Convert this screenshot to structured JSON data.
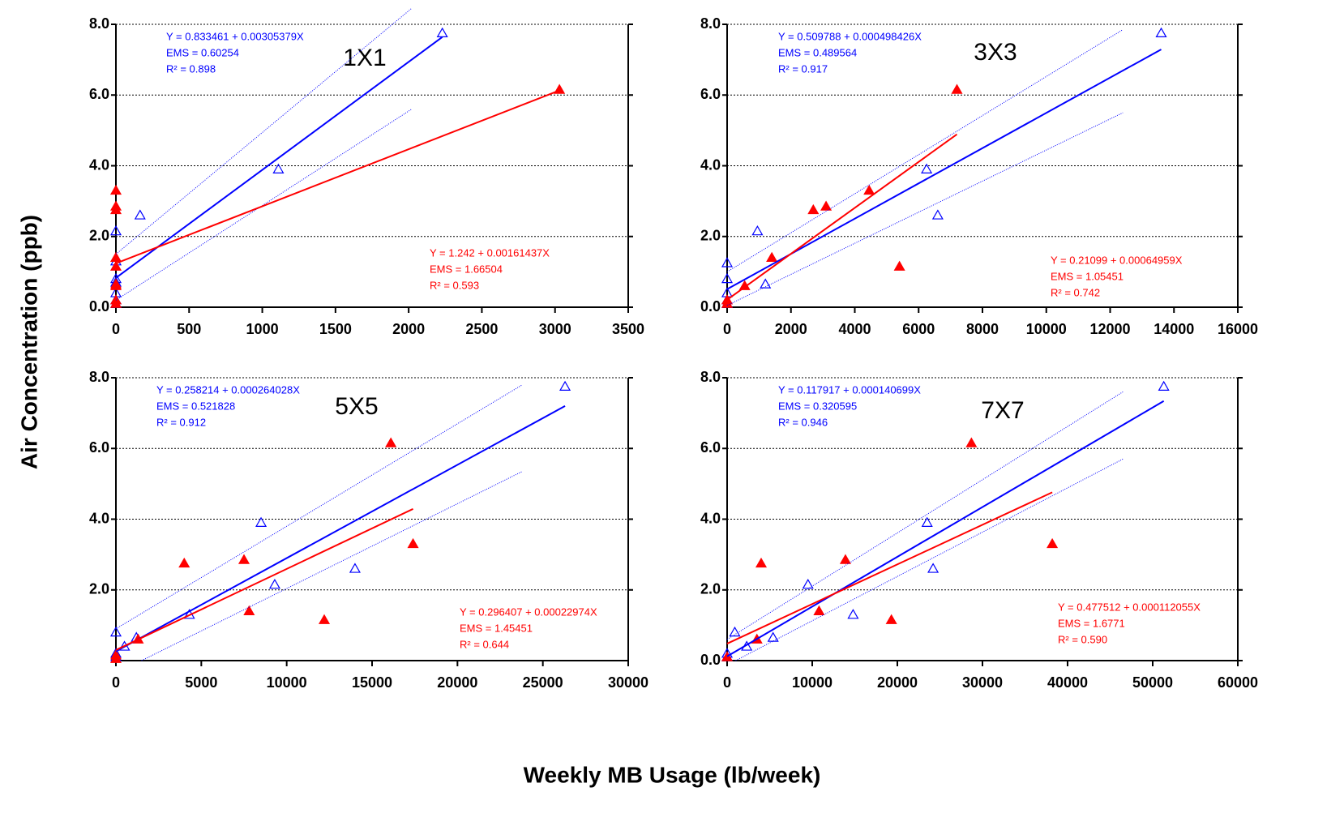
{
  "ylabel": "Air Concentration (ppb)",
  "xlabel": "Weekly MB Usage (lb/week)",
  "chart_data": [
    {
      "type": "scatter",
      "title": "1X1",
      "xlim": [
        0,
        3500
      ],
      "xticks": [
        0,
        500,
        1000,
        1500,
        2000,
        2500,
        3000,
        3500
      ],
      "ylim": [
        0,
        8
      ],
      "yticks": [
        {
          "value": 0,
          "label": "0.0"
        },
        {
          "value": 2,
          "label": "2.0"
        },
        {
          "value": 4,
          "label": "4.0"
        },
        {
          "value": 6,
          "label": "6.0"
        },
        {
          "value": 8,
          "label": "8.0"
        }
      ],
      "grid": true,
      "annotations": [
        {
          "color": "#0000ff",
          "lines": [
            "Y = 0.833461 + 0.00305379X",
            "EMS = 0.60254",
            "R² = 0.898"
          ]
        },
        {
          "color": "#ff0000",
          "lines": [
            "Y = 1.242 + 0.00161437X",
            "EMS = 1.66504",
            "R² = 0.593"
          ]
        }
      ],
      "series": [
        {
          "kind": "markers",
          "marker": "open-triangle",
          "color": "#0000ff",
          "x": [
            0,
            0,
            0,
            0,
            0,
            0,
            0,
            165,
            1110,
            2230
          ],
          "values": [
            0.1,
            0.2,
            0.4,
            0.7,
            0.8,
            1.3,
            2.15,
            2.6,
            3.9,
            7.75
          ]
        },
        {
          "kind": "markers",
          "marker": "filled-triangle",
          "color": "#ff0000",
          "x": [
            0,
            0,
            0,
            0,
            0,
            0,
            0,
            0,
            0,
            3030
          ],
          "values": [
            0.1,
            0.2,
            0.6,
            0.65,
            1.15,
            1.4,
            2.75,
            2.85,
            3.3,
            6.15
          ]
        },
        {
          "kind": "line",
          "style": "solid",
          "color": "#0000ff",
          "x": [
            0,
            2230
          ],
          "values": [
            0.83,
            7.64
          ]
        },
        {
          "kind": "line",
          "style": "dotted",
          "color": "#0000ff",
          "x": [
            0,
            2020
          ],
          "values": [
            1.5,
            8.45
          ]
        },
        {
          "kind": "line",
          "style": "dotted",
          "color": "#0000ff",
          "x": [
            0,
            2020
          ],
          "values": [
            0.2,
            5.6
          ]
        },
        {
          "kind": "line",
          "style": "solid",
          "color": "#ff0000",
          "x": [
            0,
            3030
          ],
          "values": [
            1.24,
            6.13
          ]
        }
      ]
    },
    {
      "type": "scatter",
      "title": "3X3",
      "xlim": [
        0,
        16000
      ],
      "xticks": [
        0,
        2000,
        4000,
        6000,
        8000,
        10000,
        12000,
        14000,
        16000
      ],
      "ylim": [
        0,
        8
      ],
      "yticks": [
        {
          "value": 0,
          "label": "0.0"
        },
        {
          "value": 2,
          "label": "2.0"
        },
        {
          "value": 4,
          "label": "4.0"
        },
        {
          "value": 6,
          "label": "6.0"
        },
        {
          "value": 8,
          "label": "8.0"
        }
      ],
      "grid": true,
      "annotations": [
        {
          "color": "#0000ff",
          "lines": [
            "Y = 0.509788 + 0.000498426X",
            "EMS = 0.489564",
            "R² = 0.917"
          ]
        },
        {
          "color": "#ff0000",
          "lines": [
            "Y = 0.21099 + 0.00064959X",
            "EMS = 1.05451",
            "R² = 0.742"
          ]
        }
      ],
      "series": [
        {
          "kind": "markers",
          "marker": "open-triangle",
          "color": "#0000ff",
          "x": [
            0,
            0,
            0,
            0,
            0,
            950,
            1200,
            6250,
            6600,
            13600
          ],
          "values": [
            0.1,
            0.2,
            0.4,
            0.8,
            1.25,
            2.15,
            0.65,
            3.9,
            2.6,
            7.75
          ]
        },
        {
          "kind": "markers",
          "marker": "filled-triangle",
          "color": "#ff0000",
          "x": [
            0,
            0,
            550,
            1400,
            2700,
            3100,
            4450,
            5400,
            7200
          ],
          "values": [
            0.1,
            0.2,
            0.6,
            1.4,
            2.75,
            2.85,
            3.3,
            1.15,
            6.15
          ]
        },
        {
          "kind": "line",
          "style": "solid",
          "color": "#0000ff",
          "x": [
            0,
            13600
          ],
          "values": [
            0.51,
            7.29
          ]
        },
        {
          "kind": "line",
          "style": "dotted",
          "color": "#0000ff",
          "x": [
            0,
            12400
          ],
          "values": [
            1.0,
            7.85
          ]
        },
        {
          "kind": "line",
          "style": "dotted",
          "color": "#0000ff",
          "x": [
            0,
            12400
          ],
          "values": [
            0.05,
            5.5
          ]
        },
        {
          "kind": "line",
          "style": "solid",
          "color": "#ff0000",
          "x": [
            0,
            7200
          ],
          "values": [
            0.21,
            4.89
          ]
        }
      ]
    },
    {
      "type": "scatter",
      "title": "5X5",
      "xlim": [
        0,
        30000
      ],
      "xticks": [
        0,
        5000,
        10000,
        15000,
        20000,
        25000,
        30000
      ],
      "ylim": [
        0,
        8
      ],
      "yticks": [
        {
          "value": 2,
          "label": "2.0"
        },
        {
          "value": 4,
          "label": "4.0"
        },
        {
          "value": 6,
          "label": "6.0"
        },
        {
          "value": 8,
          "label": "8.0"
        }
      ],
      "grid": true,
      "annotations": [
        {
          "color": "#0000ff",
          "lines": [
            "Y = 0.258214 + 0.000264028X",
            "EMS = 0.521828",
            "R² = 0.912"
          ]
        },
        {
          "color": "#ff0000",
          "lines": [
            "Y = 0.296407 + 0.00022974X",
            "EMS = 1.45451",
            "R² = 0.644"
          ]
        }
      ],
      "series": [
        {
          "kind": "markers",
          "marker": "open-triangle",
          "color": "#0000ff",
          "x": [
            0,
            0,
            0,
            500,
            1200,
            4300,
            8500,
            9300,
            14000,
            26300
          ],
          "values": [
            0.1,
            0.2,
            0.8,
            0.4,
            0.65,
            1.3,
            3.9,
            2.15,
            2.6,
            7.75
          ]
        },
        {
          "kind": "markers",
          "marker": "filled-triangle",
          "color": "#ff0000",
          "x": [
            0,
            0,
            1300,
            4000,
            7500,
            7800,
            12200,
            16100,
            17400
          ],
          "values": [
            0.05,
            0.15,
            0.6,
            2.75,
            2.85,
            1.4,
            1.15,
            6.15,
            3.3
          ]
        },
        {
          "kind": "line",
          "style": "solid",
          "color": "#0000ff",
          "x": [
            0,
            26300
          ],
          "values": [
            0.26,
            7.2
          ]
        },
        {
          "kind": "line",
          "style": "dotted",
          "color": "#0000ff",
          "x": [
            0,
            23800
          ],
          "values": [
            0.9,
            7.8
          ]
        },
        {
          "kind": "line",
          "style": "dotted",
          "color": "#0000ff",
          "x": [
            1500,
            23800
          ],
          "values": [
            0,
            5.35
          ]
        },
        {
          "kind": "line",
          "style": "solid",
          "color": "#ff0000",
          "x": [
            0,
            17400
          ],
          "values": [
            0.3,
            4.29
          ]
        }
      ]
    },
    {
      "type": "scatter",
      "title": "7X7",
      "xlim": [
        0,
        60000
      ],
      "xticks": [
        0,
        10000,
        20000,
        30000,
        40000,
        50000,
        60000
      ],
      "ylim": [
        0,
        8
      ],
      "yticks": [
        {
          "value": 0,
          "label": "0.0"
        },
        {
          "value": 2,
          "label": "2.0"
        },
        {
          "value": 4,
          "label": "4.0"
        },
        {
          "value": 6,
          "label": "6.0"
        },
        {
          "value": 8,
          "label": "8.0"
        }
      ],
      "grid": true,
      "annotations": [
        {
          "color": "#0000ff",
          "lines": [
            "Y = 0.117917 + 0.000140699X",
            "EMS = 0.320595",
            "R² = 0.946"
          ]
        },
        {
          "color": "#ff0000",
          "lines": [
            "Y = 0.477512 + 0.000112055X",
            "EMS = 1.6771",
            "R² = 0.590"
          ]
        }
      ],
      "series": [
        {
          "kind": "markers",
          "marker": "open-triangle",
          "color": "#0000ff",
          "x": [
            0,
            0,
            900,
            2300,
            5400,
            9500,
            14800,
            23500,
            24200,
            51300
          ],
          "values": [
            0.1,
            0.2,
            0.8,
            0.4,
            0.65,
            2.15,
            1.3,
            3.9,
            2.6,
            7.75
          ]
        },
        {
          "kind": "markers",
          "marker": "filled-triangle",
          "color": "#ff0000",
          "x": [
            0,
            3500,
            4000,
            10800,
            13900,
            19300,
            28700,
            38200
          ],
          "values": [
            0.1,
            0.6,
            2.75,
            1.4,
            2.85,
            1.15,
            6.15,
            3.3
          ]
        },
        {
          "kind": "line",
          "style": "solid",
          "color": "#0000ff",
          "x": [
            0,
            51300
          ],
          "values": [
            0.12,
            7.34
          ]
        },
        {
          "kind": "line",
          "style": "dotted",
          "color": "#0000ff",
          "x": [
            0,
            46500
          ],
          "values": [
            0.6,
            7.6
          ]
        },
        {
          "kind": "line",
          "style": "dotted",
          "color": "#0000ff",
          "x": [
            1000,
            46500
          ],
          "values": [
            0,
            5.7
          ]
        },
        {
          "kind": "line",
          "style": "solid",
          "color": "#ff0000",
          "x": [
            0,
            38200
          ],
          "values": [
            0.48,
            4.76
          ]
        }
      ]
    }
  ]
}
